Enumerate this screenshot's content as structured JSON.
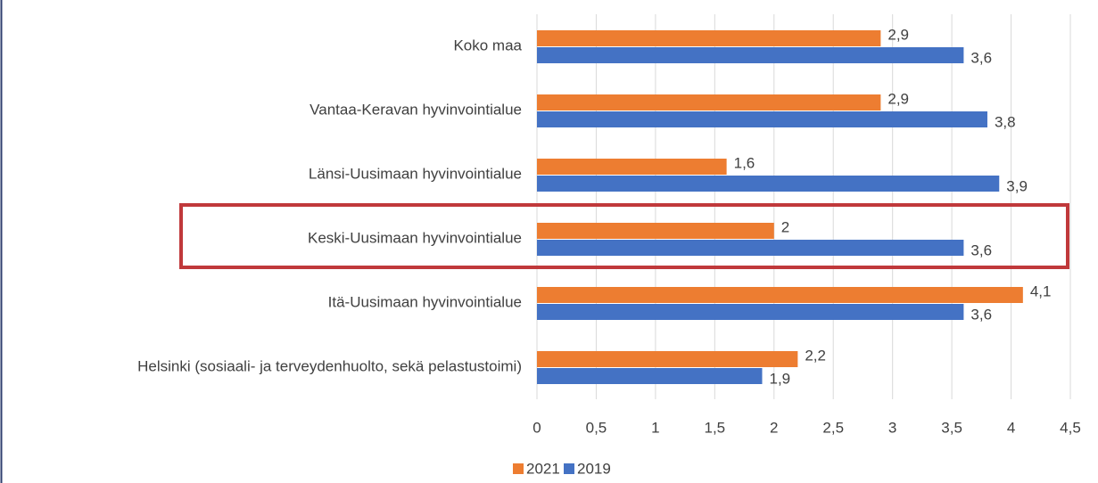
{
  "chart_data": {
    "type": "hbar",
    "categories": [
      "Koko maa",
      "Vantaa-Keravan hyvinvointialue",
      "Länsi-Uusimaan hyvinvointialue",
      "Keski-Uusimaan hyvinvointialue",
      "Itä-Uusimaan hyvinvointialue",
      "Helsinki (sosiaali- ja terveydenhuolto, sekä pelastustoimi)"
    ],
    "series": [
      {
        "name": "2021",
        "color": "#ed7d31",
        "values": [
          2.9,
          2.9,
          1.6,
          2,
          4.1,
          2.2
        ],
        "value_labels": [
          "2,9",
          "2,9",
          "1,6",
          "2",
          "4,1",
          "2,2"
        ]
      },
      {
        "name": "2019",
        "color": "#4472c4",
        "values": [
          3.6,
          3.8,
          3.9,
          3.6,
          3.6,
          1.9
        ],
        "value_labels": [
          "3,6",
          "3,8",
          "3,9",
          "3,6",
          "3,6",
          "1,9"
        ]
      }
    ],
    "xlim": [
      0,
      4.5
    ],
    "xticks": [
      0,
      {
        "value": 0.5,
        "label": "0,5"
      },
      1,
      {
        "value": 1.5,
        "label": "1,5"
      },
      2,
      {
        "value": 2.5,
        "label": "2,5"
      },
      3,
      {
        "value": 3.5,
        "label": "3,5"
      },
      4,
      {
        "value": 4.5,
        "label": "4,5"
      }
    ],
    "grid": true,
    "legend": "bottom"
  }
}
